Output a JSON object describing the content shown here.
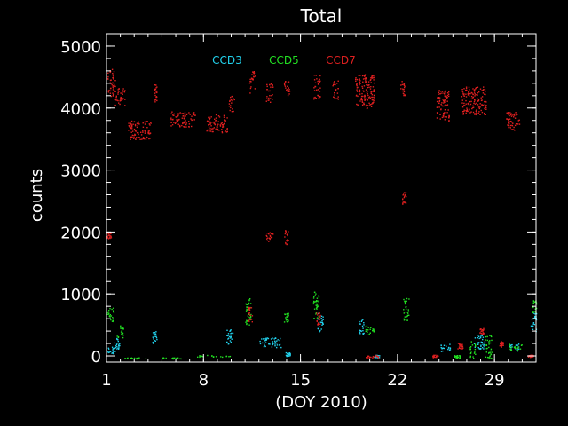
{
  "chart_data": {
    "type": "scatter",
    "title": "Total",
    "xlabel": "(DOY 2010)",
    "ylabel": "counts",
    "xlim": [
      1,
      32
    ],
    "ylim": [
      -100,
      5200
    ],
    "x_ticks": [
      1,
      8,
      15,
      22,
      29
    ],
    "y_ticks": [
      0,
      1000,
      2000,
      3000,
      4000,
      5000
    ],
    "x_tick_labels": [
      "1",
      "8",
      "15",
      "22",
      "29"
    ],
    "y_tick_labels": [
      "0",
      "1000",
      "2000",
      "3000",
      "4000",
      "5000"
    ],
    "background": "#000000",
    "axis_color": "#ffffff",
    "series": [
      {
        "name": "CCD3",
        "color": "#22d3ee",
        "clusters": [
          {
            "x": [
              1.0,
              1.6
            ],
            "y": [
              20,
              150
            ]
          },
          {
            "x": [
              1.5,
              2.0
            ],
            "y": [
              120,
              300
            ]
          },
          {
            "x": [
              4.3,
              4.6
            ],
            "y": [
              150,
              400
            ]
          },
          {
            "x": [
              9.6,
              10.1
            ],
            "y": [
              200,
              450
            ]
          },
          {
            "x": [
              12.0,
              13.6
            ],
            "y": [
              140,
              300
            ]
          },
          {
            "x": [
              13.9,
              14.3
            ],
            "y": [
              0,
              60
            ]
          },
          {
            "x": [
              16.2,
              16.6
            ],
            "y": [
              400,
              700
            ]
          },
          {
            "x": [
              19.2,
              19.6
            ],
            "y": [
              350,
              600
            ]
          },
          {
            "x": [
              20.3,
              20.7
            ],
            "y": [
              -20,
              20
            ]
          },
          {
            "x": [
              25.0,
              25.8
            ],
            "y": [
              80,
              200
            ]
          },
          {
            "x": [
              27.5,
              28.3
            ],
            "y": [
              120,
              350
            ]
          },
          {
            "x": [
              30.0,
              30.8
            ],
            "y": [
              80,
              200
            ]
          },
          {
            "x": [
              31.6,
              32.0
            ],
            "y": [
              400,
              700
            ]
          }
        ]
      },
      {
        "name": "CCD5",
        "color": "#22e022",
        "clusters": [
          {
            "x": [
              1.0,
              1.5
            ],
            "y": [
              550,
              800
            ]
          },
          {
            "x": [
              1.7,
              2.2
            ],
            "y": [
              300,
              500
            ]
          },
          {
            "x": [
              2.3,
              4.0
            ],
            "y": [
              -40,
              -20
            ]
          },
          {
            "x": [
              5.0,
              6.5
            ],
            "y": [
              -40,
              -20
            ]
          },
          {
            "x": [
              7.5,
              10.0
            ],
            "y": [
              -10,
              20
            ]
          },
          {
            "x": [
              11.0,
              11.4
            ],
            "y": [
              500,
              950
            ]
          },
          {
            "x": [
              13.8,
              14.1
            ],
            "y": [
              550,
              700
            ]
          },
          {
            "x": [
              15.9,
              16.3
            ],
            "y": [
              600,
              1050
            ]
          },
          {
            "x": [
              19.6,
              20.3
            ],
            "y": [
              350,
              500
            ]
          },
          {
            "x": [
              22.4,
              22.8
            ],
            "y": [
              550,
              950
            ]
          },
          {
            "x": [
              26.0,
              26.5
            ],
            "y": [
              -30,
              20
            ]
          },
          {
            "x": [
              27.2,
              27.6
            ],
            "y": [
              -30,
              250
            ]
          },
          {
            "x": [
              28.3,
              28.8
            ],
            "y": [
              -30,
              350
            ]
          },
          {
            "x": [
              30.0,
              31.0
            ],
            "y": [
              100,
              200
            ]
          },
          {
            "x": [
              31.7,
              32.0
            ],
            "y": [
              700,
              900
            ]
          }
        ]
      },
      {
        "name": "CCD7",
        "color": "#e02020",
        "clusters": [
          {
            "x": [
              1.0,
              1.6
            ],
            "y": [
              4200,
              4650
            ]
          },
          {
            "x": [
              1.6,
              2.3
            ],
            "y": [
              4050,
              4350
            ]
          },
          {
            "x": [
              2.5,
              4.2
            ],
            "y": [
              3500,
              3800
            ]
          },
          {
            "x": [
              4.4,
              4.6
            ],
            "y": [
              4100,
              4400
            ]
          },
          {
            "x": [
              5.6,
              7.4
            ],
            "y": [
              3700,
              3950
            ]
          },
          {
            "x": [
              8.2,
              9.7
            ],
            "y": [
              3600,
              3900
            ]
          },
          {
            "x": [
              9.8,
              10.2
            ],
            "y": [
              3950,
              4200
            ]
          },
          {
            "x": [
              11.3,
              11.7
            ],
            "y": [
              4250,
              4600
            ]
          },
          {
            "x": [
              12.5,
              13.0
            ],
            "y": [
              4100,
              4400
            ]
          },
          {
            "x": [
              13.8,
              14.2
            ],
            "y": [
              4200,
              4450
            ]
          },
          {
            "x": [
              15.9,
              16.4
            ],
            "y": [
              4150,
              4550
            ]
          },
          {
            "x": [
              17.3,
              17.7
            ],
            "y": [
              4150,
              4450
            ]
          },
          {
            "x": [
              18.9,
              20.3
            ],
            "y": [
              4000,
              4550
            ]
          },
          {
            "x": [
              22.2,
              22.5
            ],
            "y": [
              4200,
              4450
            ]
          },
          {
            "x": [
              24.8,
              25.7
            ],
            "y": [
              3800,
              4300
            ]
          },
          {
            "x": [
              26.6,
              28.4
            ],
            "y": [
              3900,
              4350
            ]
          },
          {
            "x": [
              29.8,
              30.8
            ],
            "y": [
              3650,
              3950
            ]
          },
          {
            "x": [
              1.0,
              1.3
            ],
            "y": [
              1900,
              2000
            ]
          },
          {
            "x": [
              12.5,
              13.0
            ],
            "y": [
              1850,
              2000
            ]
          },
          {
            "x": [
              13.8,
              14.1
            ],
            "y": [
              1800,
              2050
            ]
          },
          {
            "x": [
              22.3,
              22.6
            ],
            "y": [
              2450,
              2650
            ]
          },
          {
            "x": [
              16.1,
              16.4
            ],
            "y": [
              500,
              700
            ]
          },
          {
            "x": [
              19.7,
              20.6
            ],
            "y": [
              -30,
              20
            ]
          },
          {
            "x": [
              24.5,
              24.9
            ],
            "y": [
              -20,
              20
            ]
          },
          {
            "x": [
              26.3,
              26.7
            ],
            "y": [
              120,
              220
            ]
          },
          {
            "x": [
              27.9,
              28.2
            ],
            "y": [
              350,
              450
            ]
          },
          {
            "x": [
              29.3,
              29.6
            ],
            "y": [
              150,
              250
            ]
          },
          {
            "x": [
              31.4,
              31.8
            ],
            "y": [
              -20,
              20
            ]
          },
          {
            "x": [
              11.2,
              11.5
            ],
            "y": [
              550,
              800
            ]
          }
        ]
      }
    ]
  }
}
